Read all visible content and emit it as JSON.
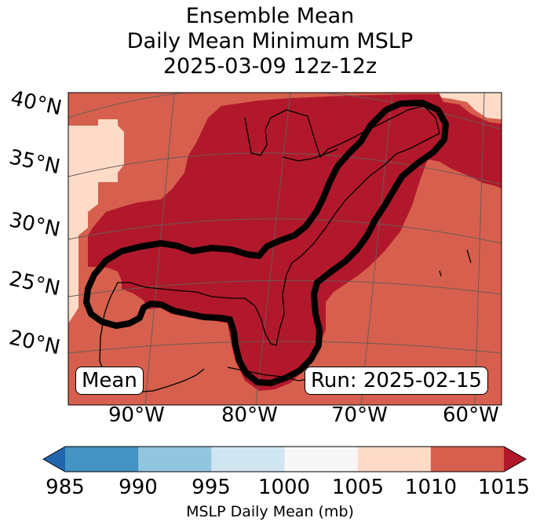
{
  "title": {
    "line1": "Ensemble Mean",
    "line2": "Daily Mean Minimum MSLP",
    "line3": "2025-03-09 12z-12z"
  },
  "map": {
    "lat_labels": [
      "40°N",
      "35°N",
      "30°N",
      "25°N",
      "20°N"
    ],
    "lon_labels": [
      "90°W",
      "80°W",
      "70°W",
      "60°W"
    ],
    "box_left": "Mean",
    "box_right": "Run: 2025-02-15",
    "shading_colors": {
      "ge_1015": "#b2182b",
      "1010_1015": "#d6604d",
      "1005_1010": "#fddbc7"
    }
  },
  "colorbar": {
    "ticks": [
      "985",
      "990",
      "995",
      "1000",
      "1005",
      "1010",
      "1015"
    ],
    "colors": [
      "#2166ac",
      "#4393c3",
      "#92c5de",
      "#d1e5f0",
      "#f7f7f7",
      "#fddbc7",
      "#d6604d",
      "#b2182b"
    ],
    "label": "MSLP Daily Mean (mb)"
  }
}
